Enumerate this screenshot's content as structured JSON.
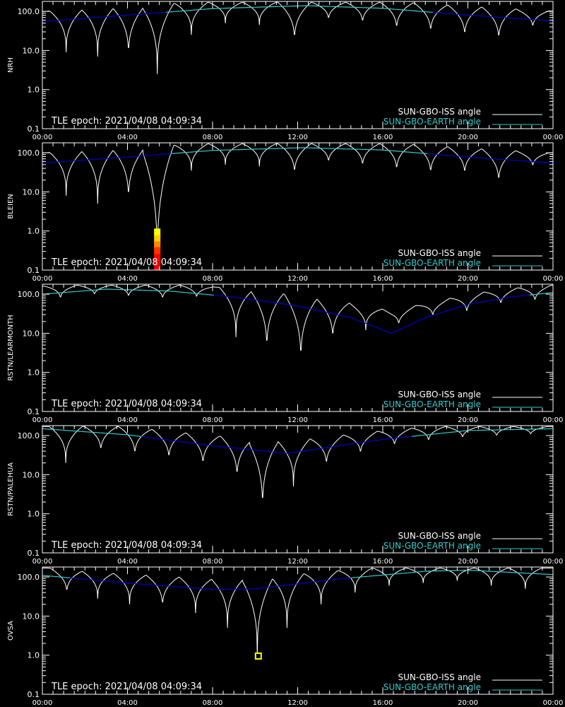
{
  "epoch_label": "TLE epoch: 2021/04/08 04:09:34",
  "legend": {
    "iss": {
      "label": "SUN-GBO-ISS angle",
      "color": "#ffffff"
    },
    "earth": {
      "label": "SUN-GBO-EARTH angle",
      "color": "#33cccc"
    }
  },
  "colors": {
    "background": "#000000",
    "axes": "#ffffff",
    "earth_day": "#33cccc",
    "earth_night": "#0000cc",
    "iss_day": "#ffffff",
    "iss_shadow": "#888888"
  },
  "chart_data": [
    {
      "type": "line",
      "ylabel": "NRH",
      "yscale": "log",
      "ylim": [
        0.1,
        180
      ],
      "xlim": [
        "00:00",
        "24:00"
      ],
      "x_ticks": [
        "00:00",
        "04:00",
        "08:00",
        "12:00",
        "16:00",
        "20:00",
        "00:00"
      ],
      "y_ticks": [
        "0.1",
        "1.0",
        "10.0",
        "100.0"
      ],
      "series": [
        {
          "name": "SUN-GBO-ISS angle",
          "minima_hours": [
            1.12,
            2.6,
            4.05,
            5.4,
            7.0,
            8.6,
            10.2,
            11.85,
            13.45,
            15.05,
            16.65,
            18.25,
            19.85,
            21.45,
            23.05
          ],
          "minima_values": [
            9,
            7,
            6,
            2.5,
            25,
            50,
            45,
            15,
            55,
            45,
            30,
            25,
            20,
            16,
            35
          ]
        },
        {
          "name": "SUN-GBO-EARTH angle",
          "x_hours": [
            0,
            4,
            8,
            12.4,
            16,
            20,
            24
          ],
          "y": [
            55,
            80,
            118,
            140,
            120,
            80,
            57
          ]
        }
      ],
      "markers": []
    },
    {
      "type": "line",
      "ylabel": "BLEIEN",
      "yscale": "log",
      "ylim": [
        0.1,
        180
      ],
      "xlim": [
        "00:00",
        "24:00"
      ],
      "x_ticks": [
        "00:00",
        "04:00",
        "08:00",
        "12:00",
        "16:00",
        "20:00",
        "00:00"
      ],
      "y_ticks": [
        "0.1",
        "1.0",
        "10.0",
        "100.0"
      ],
      "series": [
        {
          "name": "SUN-GBO-ISS angle",
          "minima_hours": [
            1.12,
            2.6,
            4.05,
            5.4,
            7.0,
            8.6,
            10.2,
            11.85,
            13.45,
            15.05,
            16.65,
            18.25,
            19.85,
            21.45,
            23.05
          ],
          "minima_values": [
            8,
            5,
            5,
            0.1,
            35,
            50,
            45,
            25,
            50,
            40,
            30,
            25,
            25,
            15,
            40
          ]
        },
        {
          "name": "SUN-GBO-EARTH angle",
          "x_hours": [
            0,
            4,
            8,
            12.2,
            16,
            20,
            24
          ],
          "y": [
            55,
            78,
            115,
            135,
            118,
            78,
            55
          ]
        }
      ],
      "markers": [
        {
          "hour": 5.4,
          "value": 0.9,
          "color": "#ffff00"
        },
        {
          "hour": 5.4,
          "value": 0.6,
          "color": "#ffcc00"
        },
        {
          "hour": 5.4,
          "value": 0.42,
          "color": "#ff8800"
        },
        {
          "hour": 5.4,
          "value": 0.3,
          "color": "#ff3300"
        },
        {
          "hour": 5.4,
          "value": 0.2,
          "color": "#ff0000"
        },
        {
          "hour": 5.4,
          "value": 0.13,
          "color": "#ee0000"
        }
      ]
    },
    {
      "type": "line",
      "ylabel": "RSTN/LEARMONTH",
      "yscale": "log",
      "ylim": [
        0.1,
        180
      ],
      "xlim": [
        "00:00",
        "24:00"
      ],
      "x_ticks": [
        "00:00",
        "04:00",
        "08:00",
        "12:00",
        "16:00",
        "20:00",
        "00:00"
      ],
      "y_ticks": [
        "0.1",
        "1.0",
        "10.0",
        "100.0"
      ],
      "series": [
        {
          "name": "SUN-GBO-ISS angle",
          "minima_hours": [
            0.85,
            2.45,
            4.05,
            5.65,
            7.25,
            9.1,
            10.55,
            12.15,
            13.65,
            15.2,
            16.75,
            18.35,
            19.95,
            21.55,
            23.15
          ],
          "minima_values": [
            70,
            90,
            80,
            70,
            75,
            8,
            3,
            1.5,
            6,
            12,
            15,
            25,
            30,
            50,
            60
          ]
        },
        {
          "name": "SUN-GBO-EARTH angle",
          "x_hours": [
            0,
            3,
            6,
            9,
            12,
            14.5,
            16.4,
            18,
            20,
            22,
            24
          ],
          "y": [
            100,
            135,
            120,
            85,
            50,
            25,
            10,
            25,
            55,
            85,
            110
          ]
        }
      ],
      "markers": []
    },
    {
      "type": "line",
      "ylabel": "RSTN/PALEHUA",
      "yscale": "log",
      "ylim": [
        0.1,
        180
      ],
      "xlim": [
        "00:00",
        "24:00"
      ],
      "x_ticks": [
        "00:00",
        "04:00",
        "08:00",
        "12:00",
        "16:00",
        "20:00",
        "00:00"
      ],
      "y_ticks": [
        "0.1",
        "1.0",
        "10.0",
        "100.0"
      ],
      "series": [
        {
          "name": "SUN-GBO-ISS angle",
          "minima_hours": [
            1.1,
            2.75,
            4.35,
            5.95,
            7.55,
            9.15,
            10.35,
            11.8,
            13.35,
            14.95,
            16.55,
            18.15,
            19.75,
            21.35,
            22.95
          ],
          "minima_values": [
            20,
            35,
            28,
            22,
            15,
            7,
            1,
            5,
            15,
            30,
            50,
            65,
            80,
            90,
            100
          ]
        },
        {
          "name": "SUN-GBO-EARTH angle",
          "x_hours": [
            0,
            4,
            8,
            11.5,
            16,
            20,
            24
          ],
          "y": [
            150,
            105,
            55,
            35,
            80,
            135,
            150
          ]
        }
      ],
      "markers": []
    },
    {
      "type": "line",
      "ylabel": "OVSA",
      "yscale": "log",
      "ylim": [
        0.1,
        180
      ],
      "xlim": [
        "00:00",
        "24:00"
      ],
      "x_ticks": [
        "00:00",
        "04:00",
        "08:00",
        "12:00",
        "16:00",
        "20:00",
        "00:00"
      ],
      "y_ticks": [
        "0.1",
        "1.0",
        "10.0",
        "100.0"
      ],
      "series": [
        {
          "name": "SUN-GBO-ISS angle",
          "minima_hours": [
            1.15,
            2.6,
            4.1,
            5.65,
            7.2,
            8.7,
            10.1,
            11.5,
            13.1,
            14.7,
            16.3,
            17.9,
            19.5,
            21.1,
            22.7
          ],
          "minima_values": [
            35,
            28,
            20,
            15,
            12,
            5,
            0.9,
            5,
            20,
            40,
            60,
            70,
            80,
            60,
            50
          ]
        },
        {
          "name": "SUN-GBO-EARTH angle",
          "x_hours": [
            0,
            4,
            8,
            10,
            14,
            18,
            20,
            24
          ],
          "y": [
            110,
            70,
            48,
            50,
            90,
            140,
            150,
            115
          ]
        }
      ],
      "markers": [
        {
          "hour": 10.15,
          "value": 0.95,
          "color": "#ffff00",
          "hollow": true
        }
      ]
    }
  ]
}
